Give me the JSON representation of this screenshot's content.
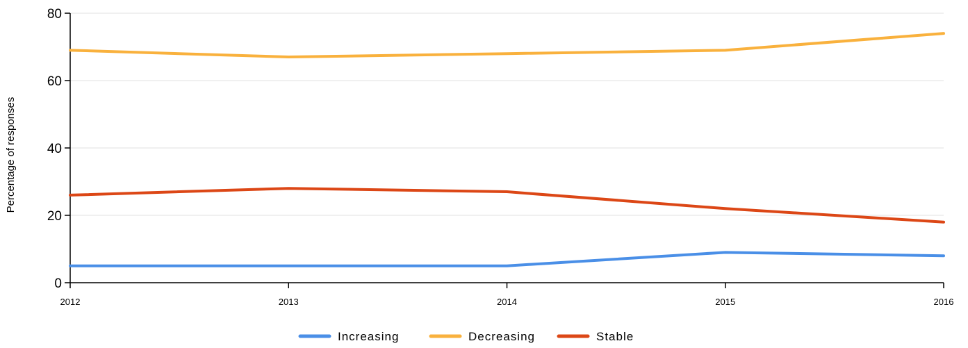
{
  "chart_data": {
    "type": "line",
    "title": "",
    "xlabel": "",
    "ylabel": "Percentage of responses",
    "x": [
      "2012",
      "2013",
      "2014",
      "2015",
      "2016"
    ],
    "ylim": [
      0,
      80
    ],
    "yticks": [
      0,
      20,
      40,
      60,
      80
    ],
    "grid": true,
    "legend": "bottom-center",
    "series": [
      {
        "name": "Increasing",
        "color": "#4a8fe7",
        "values": [
          5,
          5,
          5,
          9,
          8
        ]
      },
      {
        "name": "Decreasing",
        "color": "#f9b13d",
        "values": [
          69,
          67,
          68,
          69,
          74
        ]
      },
      {
        "name": "Stable",
        "color": "#dc4716",
        "values": [
          26,
          28,
          27,
          22,
          18
        ]
      }
    ]
  }
}
